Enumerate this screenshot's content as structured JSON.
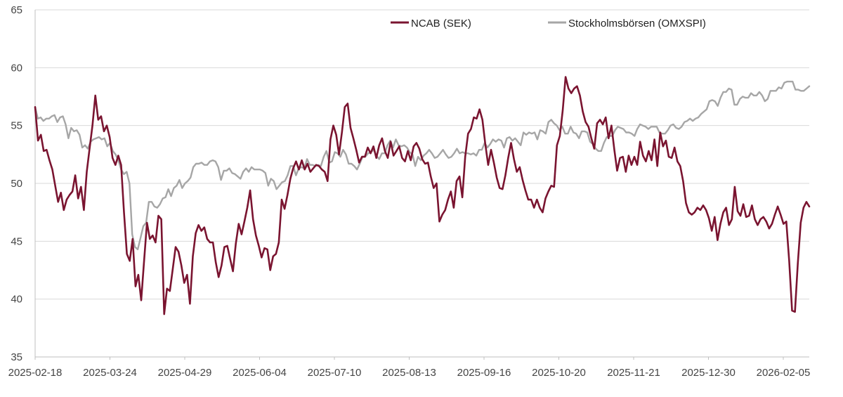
{
  "chart_data": {
    "type": "line",
    "title": "",
    "xlabel": "",
    "ylabel": "",
    "ylim": [
      35,
      65
    ],
    "yticks": [
      35,
      40,
      45,
      50,
      55,
      60,
      65
    ],
    "grid": true,
    "legend_position": "top-right",
    "xtick_labels": [
      "2025-02-18",
      "2025-03-24",
      "2025-04-29",
      "2025-06-04",
      "2025-07-10",
      "2025-08-13",
      "2025-09-16",
      "2025-10-20",
      "2025-11-21",
      "2025-12-30",
      "2026-02-05"
    ],
    "colors": {
      "ncab": "#7a1430",
      "omx": "#a6a6a6",
      "grid": "#d9d9d9",
      "axis": "#bfbfbf"
    },
    "series": [
      {
        "name": "NCAB (SEK)",
        "key": "ncab",
        "values": [
          56.6,
          53.7,
          54.2,
          52.8,
          52.9,
          52.0,
          51.2,
          49.8,
          48.4,
          49.2,
          47.7,
          48.6,
          49.0,
          49.3,
          50.7,
          48.7,
          49.7,
          47.7,
          51.0,
          53.0,
          55.0,
          57.6,
          55.5,
          55.8,
          54.5,
          55.0,
          54.0,
          52.2,
          51.6,
          52.4,
          51.6,
          47.5,
          43.9,
          43.3,
          45.2,
          41.1,
          42.1,
          39.9,
          43.3,
          46.6,
          45.2,
          45.5,
          44.9,
          47.2,
          46.9,
          38.7,
          40.9,
          40.7,
          42.6,
          44.5,
          44.1,
          42.9,
          41.4,
          42.1,
          39.6,
          43.7,
          45.7,
          46.4,
          45.9,
          46.2,
          45.2,
          44.9,
          44.9,
          43.2,
          41.9,
          42.9,
          44.5,
          44.6,
          43.5,
          42.4,
          44.8,
          46.5,
          45.6,
          46.7,
          47.9,
          49.4,
          46.9,
          45.5,
          44.6,
          43.6,
          44.4,
          44.3,
          42.5,
          43.7,
          43.9,
          44.9,
          48.6,
          47.8,
          49.0,
          50.4,
          51.3,
          51.9,
          51.2,
          52.0,
          51.2,
          51.7,
          51.0,
          51.3,
          51.6,
          51.5,
          51.2,
          51.0,
          50.2,
          53.8,
          55.0,
          54.2,
          52.5,
          54.4,
          56.6,
          56.9,
          54.8,
          53.9,
          52.9,
          51.8,
          52.3,
          52.3,
          53.1,
          52.6,
          53.2,
          52.2,
          53.3,
          53.9,
          52.8,
          52.2,
          53.6,
          52.4,
          52.8,
          53.2,
          52.2,
          51.9,
          52.8,
          52.0,
          53.2,
          53.5,
          53.0,
          52.1,
          51.7,
          51.8,
          50.6,
          49.6,
          50.0,
          46.7,
          47.3,
          47.7,
          48.6,
          49.3,
          47.9,
          50.2,
          50.6,
          48.8,
          52.3,
          54.3,
          54.7,
          55.7,
          55.6,
          56.4,
          55.5,
          53.4,
          51.6,
          52.9,
          51.8,
          50.5,
          49.6,
          49.5,
          50.7,
          52.2,
          53.5,
          52.1,
          51.0,
          51.4,
          50.3,
          49.4,
          48.6,
          48.6,
          47.9,
          48.6,
          47.9,
          47.5,
          48.7,
          49.3,
          49.8,
          49.7,
          53.3,
          54.1,
          56.3,
          59.2,
          58.2,
          57.8,
          58.2,
          58.4,
          57.6,
          56.2,
          55.3,
          54.9,
          53.9,
          53.0,
          55.2,
          55.5,
          55.1,
          55.7,
          53.9,
          55.0,
          52.9,
          51.1,
          52.2,
          52.3,
          51.0,
          52.4,
          51.6,
          52.3,
          51.6,
          53.6,
          52.4,
          51.9,
          52.8,
          52.0,
          53.8,
          51.5,
          54.4,
          53.2,
          53.7,
          52.3,
          52.2,
          53.1,
          51.9,
          51.5,
          50.2,
          48.3,
          47.5,
          47.3,
          47.5,
          47.9,
          47.7,
          48.1,
          47.7,
          47.0,
          45.9,
          47.1,
          45.1,
          46.5,
          47.5,
          47.9,
          46.4,
          46.9,
          49.7,
          47.6,
          47.2,
          48.2,
          47.1,
          47.2,
          48.1,
          46.9,
          46.4,
          46.9,
          47.1,
          46.7,
          46.1,
          46.5,
          47.3,
          48.0,
          47.3,
          46.5,
          46.7,
          43.3,
          39.0,
          38.9,
          43.1,
          46.6,
          47.9,
          48.4,
          48.0
        ]
      },
      {
        "name": "Stockholmsbörsen (OMXSPI)",
        "key": "omx",
        "values": [
          56.6,
          55.6,
          55.7,
          55.4,
          55.6,
          55.6,
          55.8,
          55.9,
          55.3,
          55.7,
          55.8,
          55.1,
          53.9,
          54.8,
          54.5,
          54.6,
          54.2,
          53.1,
          53.3,
          53.0,
          53.6,
          53.8,
          53.9,
          54.0,
          53.8,
          53.9,
          53.2,
          53.5,
          52.8,
          52.5,
          52.0,
          51.2,
          50.8,
          51.0,
          50.0,
          45.6,
          44.5,
          44.3,
          45.3,
          46.3,
          46.6,
          48.4,
          48.4,
          48.0,
          47.9,
          48.2,
          48.7,
          48.8,
          49.5,
          48.9,
          49.6,
          49.8,
          50.3,
          49.6,
          50.0,
          50.2,
          50.5,
          51.4,
          51.7,
          51.7,
          51.8,
          51.6,
          51.6,
          51.9,
          52.0,
          51.9,
          51.4,
          50.3,
          51.1,
          51.1,
          51.3,
          50.9,
          50.8,
          50.6,
          50.4,
          51.0,
          51.3,
          51.0,
          51.4,
          51.2,
          51.2,
          51.2,
          51.1,
          50.9,
          49.8,
          50.4,
          50.2,
          49.5,
          49.8,
          50.1,
          50.2,
          50.7,
          51.5,
          51.5,
          50.7,
          51.3,
          51.4,
          51.3,
          52.1,
          51.6,
          51.6,
          51.5,
          51.6,
          51.5,
          52.3,
          52.8,
          51.8,
          51.9,
          52.7,
          52.6,
          52.3,
          52.9,
          52.5,
          51.7,
          51.7,
          51.5,
          51.2,
          51.7,
          52.3,
          52.3,
          52.6,
          52.7,
          52.9,
          52.4,
          52.1,
          52.6,
          52.6,
          53.3,
          53.7,
          53.1,
          53.8,
          53.3,
          53.2,
          53.3,
          53.1,
          52.7,
          52.5,
          51.5,
          52.3,
          52.0,
          52.4,
          52.6,
          52.9,
          52.6,
          52.2,
          52.3,
          52.6,
          52.9,
          52.5,
          52.2,
          52.3,
          52.6,
          53.0,
          52.6,
          52.7,
          52.6,
          52.6,
          52.5,
          52.6,
          52.4,
          52.9,
          52.9,
          53.5,
          53.1,
          53.4,
          53.8,
          53.6,
          53.8,
          53.7,
          53.1,
          53.9,
          54.0,
          53.7,
          53.9,
          53.6,
          53.3,
          54.4,
          54.2,
          54.4,
          54.3,
          54.4,
          53.8,
          54.6,
          54.5,
          54.3,
          55.3,
          55.5,
          55.2,
          55.0,
          54.6,
          54.9,
          54.3,
          54.3,
          54.9,
          54.4,
          54.3,
          53.9,
          54.5,
          54.5,
          54.4,
          53.6,
          53.4,
          53.0,
          52.8,
          52.8,
          53.5,
          54.0,
          54.1,
          54.1,
          54.6,
          54.9,
          54.8,
          54.7,
          54.4,
          54.4,
          54.3,
          54.1,
          54.7,
          55.1,
          55.0,
          54.9,
          54.7,
          54.9,
          54.9,
          54.9,
          54.4,
          54.3,
          54.3,
          54.6,
          55.0,
          55.1,
          54.8,
          54.7,
          54.9,
          55.3,
          55.4,
          55.6,
          55.4,
          55.6,
          55.7,
          56.0,
          56.2,
          56.4,
          57.1,
          57.2,
          57.1,
          56.7,
          57.4,
          57.9,
          57.9,
          58.2,
          58.1,
          56.8,
          56.8,
          57.3,
          57.5,
          57.4,
          57.4,
          57.8,
          57.6,
          57.6,
          57.9,
          57.6,
          57.1,
          57.3,
          58.0,
          58.0,
          58.0,
          58.3,
          58.2,
          58.7,
          58.8,
          58.8,
          58.8,
          58.1,
          58.1,
          58.0,
          58.0,
          58.2,
          58.4
        ]
      }
    ]
  }
}
